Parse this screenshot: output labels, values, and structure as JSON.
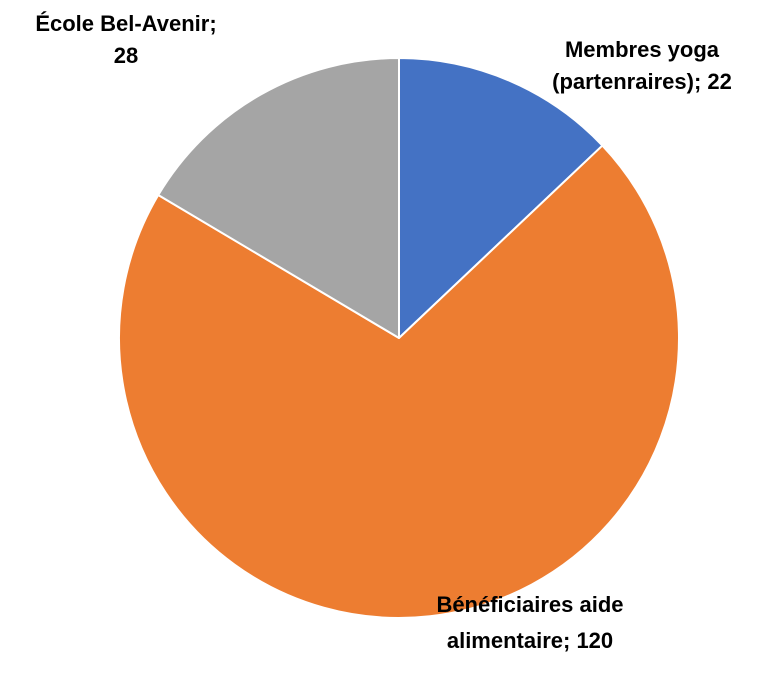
{
  "chart_data": {
    "type": "pie",
    "slices": [
      {
        "label_lines": [
          "Membres yoga",
          "(partenraires); 22"
        ],
        "value": 22,
        "color": "#4472C4"
      },
      {
        "label_lines": [
          "Bénéficiaires aide",
          "alimentaire; 120"
        ],
        "value": 120,
        "color": "#ED7D31"
      },
      {
        "label_lines": [
          "École Bel-Avenir;",
          "28"
        ],
        "value": 28,
        "color": "#A5A5A5"
      }
    ],
    "start_angle": "12 o'clock",
    "direction": "clockwise",
    "legend": "none",
    "slice_border_color": "#ffffff"
  }
}
